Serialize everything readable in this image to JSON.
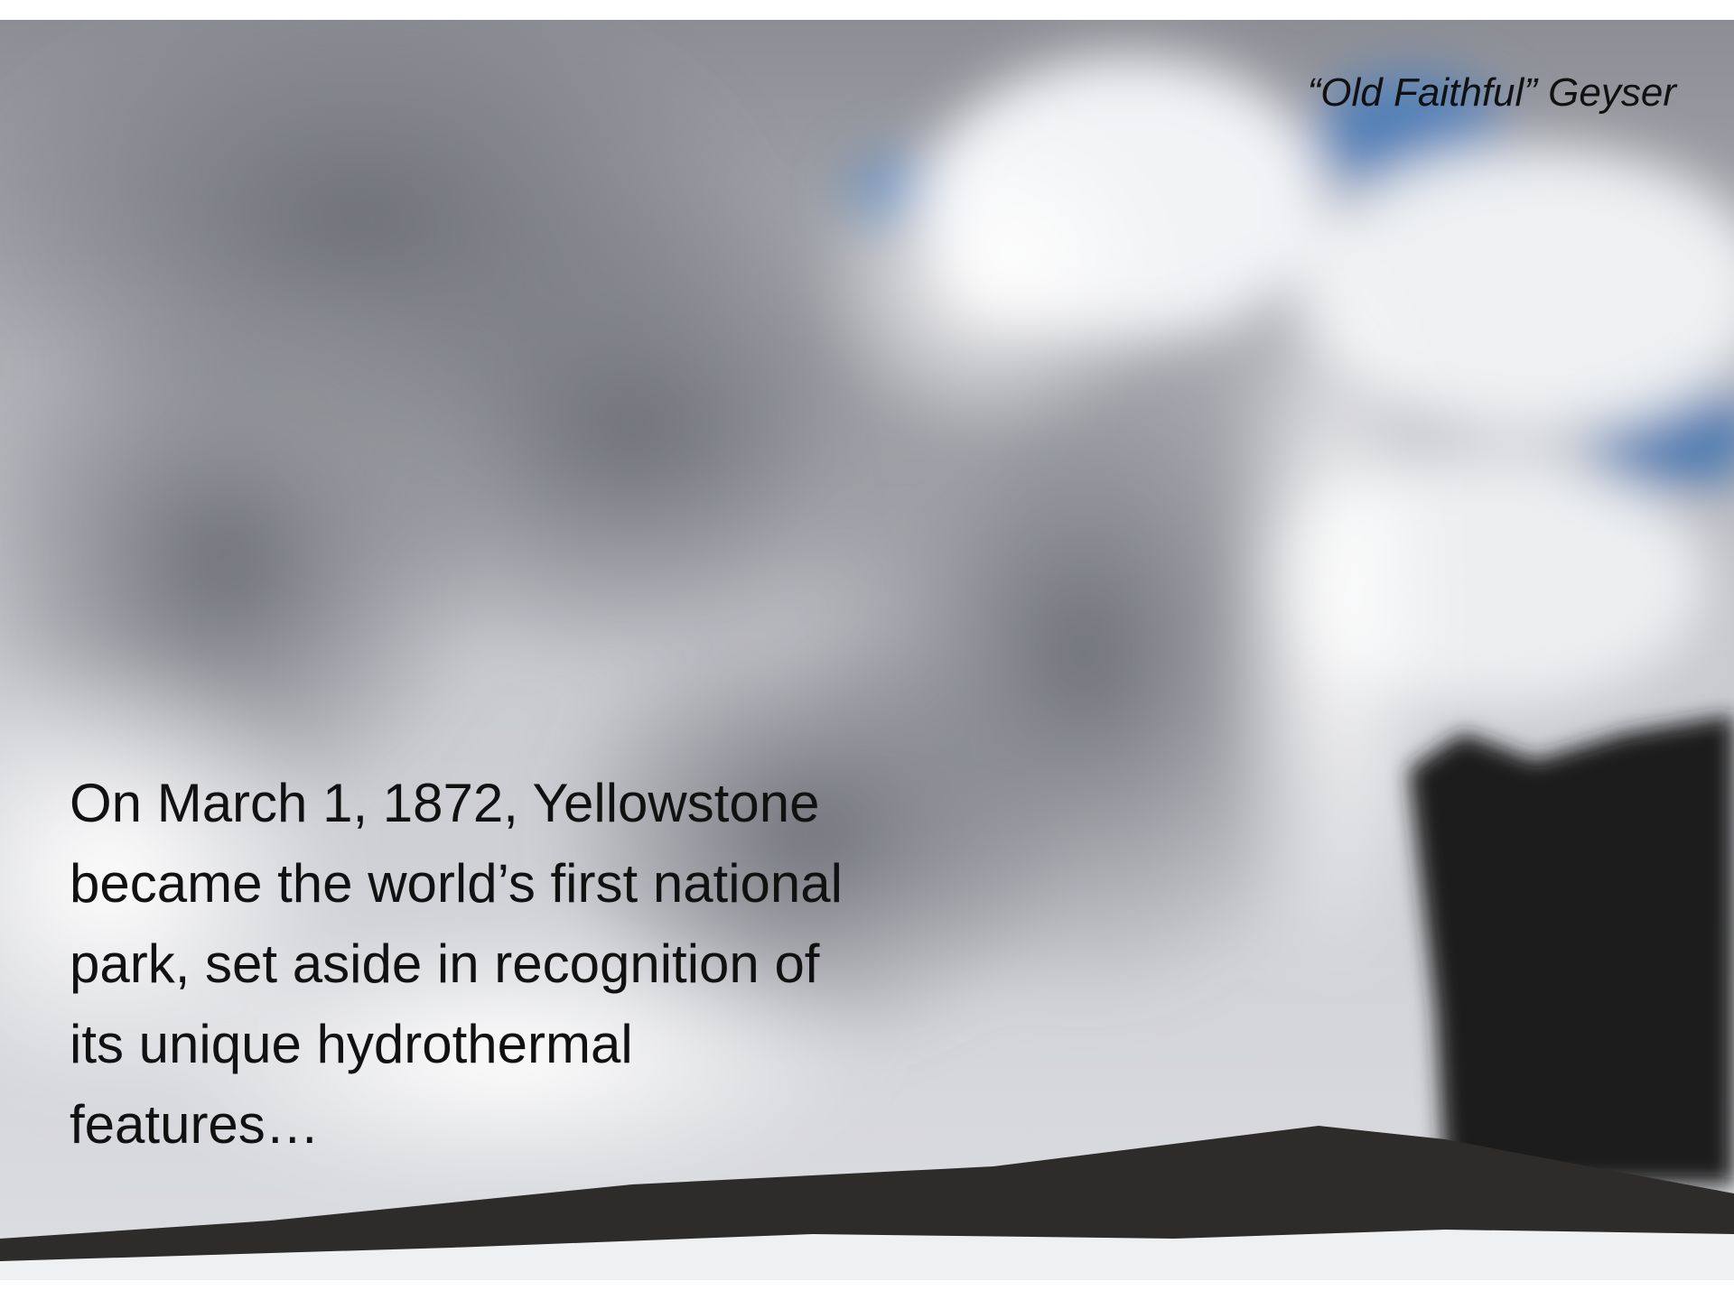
{
  "caption": "“Old Faithful” Geyser",
  "body": [
    "On March 1, 1872, Yellowstone",
    "became the world’s first national",
    "park, set aside in recognition of",
    "its unique hydrothermal",
    "features…"
  ]
}
